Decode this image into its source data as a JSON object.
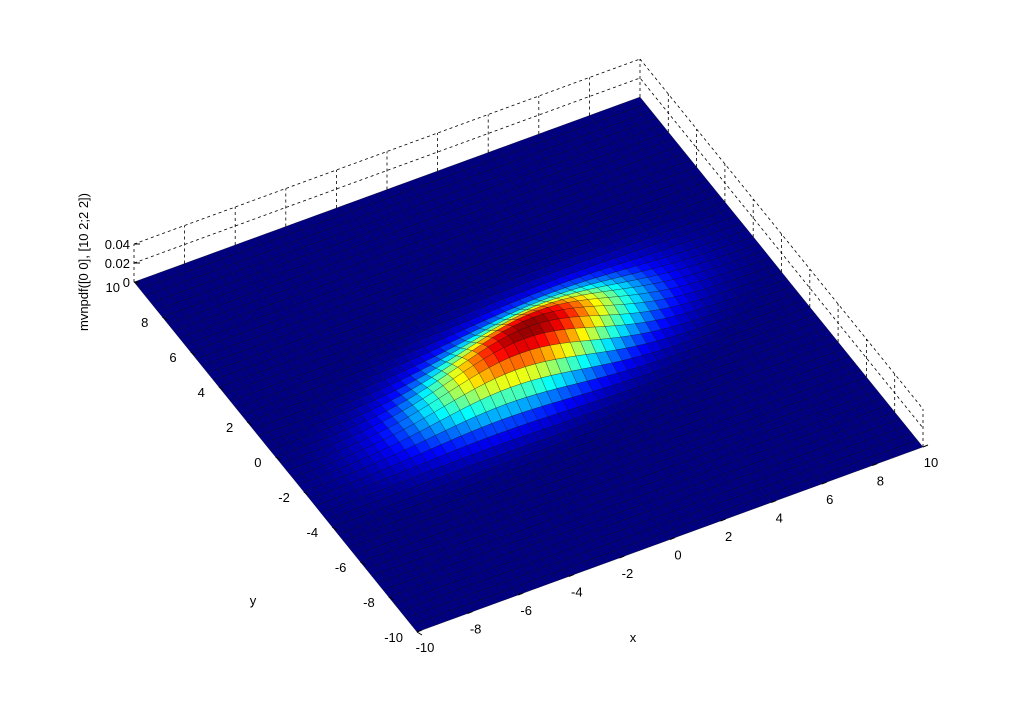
{
  "chart_data": {
    "type": "surface",
    "title": "",
    "xlabel": "x",
    "ylabel": "y",
    "zlabel": "mvnpdf([0 0], [10 2;2 2])",
    "function": "multivariate normal pdf",
    "mean": [
      0,
      0
    ],
    "covariance": [
      [
        10,
        2
      ],
      [
        2,
        2
      ]
    ],
    "xlim": [
      -10,
      10
    ],
    "ylim": [
      -10,
      10
    ],
    "zlim": [
      0,
      0.04
    ],
    "grid_step": 0.4,
    "xticks": [
      -10,
      -8,
      -6,
      -4,
      -2,
      0,
      2,
      4,
      6,
      8,
      10
    ],
    "yticks": [
      -10,
      -8,
      -6,
      -4,
      -2,
      0,
      2,
      4,
      6,
      8,
      10
    ],
    "zticks": [
      0,
      0.02,
      0.04
    ],
    "xtick_labels": [
      "-10",
      "-8",
      "-6",
      "-4",
      "-2",
      "0",
      "2",
      "4",
      "6",
      "8",
      "10"
    ],
    "ytick_labels": [
      "-10",
      "-8",
      "-6",
      "-4",
      "-2",
      "0",
      "2",
      "4",
      "6",
      "8",
      "10"
    ],
    "ztick_labels": [
      "0",
      "0.02",
      "0.04"
    ],
    "peak_value": 0.0398,
    "colormap": "jet",
    "grid": true,
    "colors": {
      "edge": "#000000",
      "box": "#000000",
      "background": "#ffffff"
    }
  }
}
